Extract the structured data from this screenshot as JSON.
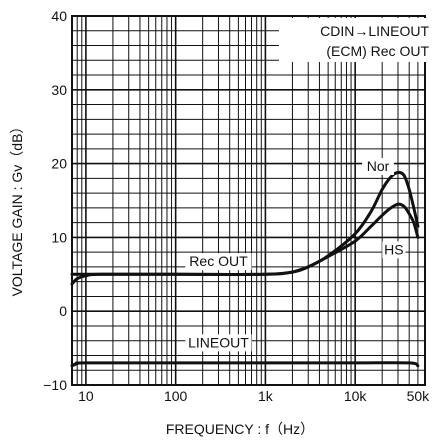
{
  "chart_data": {
    "type": "line",
    "xscale": "log",
    "xlabel": "FREQUENCY : f（Hz）",
    "ylabel": "VOLTAGE GAIN : Gv（dB）",
    "xlim": [
      7,
      60000
    ],
    "ylim": [
      -10,
      40
    ],
    "xticks": [
      {
        "value": 10,
        "label": "10"
      },
      {
        "value": 100,
        "label": "100"
      },
      {
        "value": 1000,
        "label": "1k"
      },
      {
        "value": 10000,
        "label": "10k"
      },
      {
        "value": 50000,
        "label": "50k"
      }
    ],
    "yticks": [
      {
        "value": 40,
        "label": "40"
      },
      {
        "value": 30,
        "label": "30"
      },
      {
        "value": 20,
        "label": "20"
      },
      {
        "value": 10,
        "label": "10"
      },
      {
        "value": 0,
        "label": "0"
      },
      {
        "value": -10,
        "label": "−10"
      }
    ],
    "grid": true,
    "annotation": [
      "CDIN→LINEOUT",
      "(ECM) Rec OUT"
    ],
    "series": [
      {
        "name": "Nor",
        "points": [
          [
            7,
            5
          ],
          [
            10,
            5
          ],
          [
            20,
            5
          ],
          [
            100,
            5
          ],
          [
            1000,
            5
          ],
          [
            2000,
            5.3
          ],
          [
            3000,
            6
          ],
          [
            5000,
            7.5
          ],
          [
            10000,
            10.5
          ],
          [
            15000,
            13.5
          ],
          [
            20000,
            16.5
          ],
          [
            25000,
            18.2
          ],
          [
            30000,
            18.8
          ],
          [
            35000,
            18.4
          ],
          [
            40000,
            16.5
          ],
          [
            45000,
            14
          ],
          [
            50000,
            11.5
          ]
        ]
      },
      {
        "name": "HS",
        "points": [
          [
            2000,
            5.3
          ],
          [
            3000,
            6
          ],
          [
            5000,
            7.4
          ],
          [
            10000,
            9.5
          ],
          [
            15000,
            11.5
          ],
          [
            20000,
            13
          ],
          [
            25000,
            14
          ],
          [
            30000,
            14.5
          ],
          [
            35000,
            14.2
          ],
          [
            40000,
            13.2
          ],
          [
            45000,
            12
          ],
          [
            50000,
            10
          ]
        ]
      },
      {
        "name": "Rec OUT",
        "points": [
          [
            7,
            3.7
          ],
          [
            8,
            4.4
          ],
          [
            10,
            4.8
          ],
          [
            15,
            5
          ],
          [
            100,
            5
          ],
          [
            1000,
            5
          ],
          [
            2000,
            5.3
          ]
        ]
      },
      {
        "name": "LINEOUT",
        "points": [
          [
            7,
            -7.4
          ],
          [
            8,
            -7.1
          ],
          [
            10,
            -7
          ],
          [
            100,
            -7
          ],
          [
            1000,
            -7
          ],
          [
            10000,
            -7
          ],
          [
            40000,
            -7
          ],
          [
            50000,
            -7.4
          ]
        ]
      }
    ]
  }
}
